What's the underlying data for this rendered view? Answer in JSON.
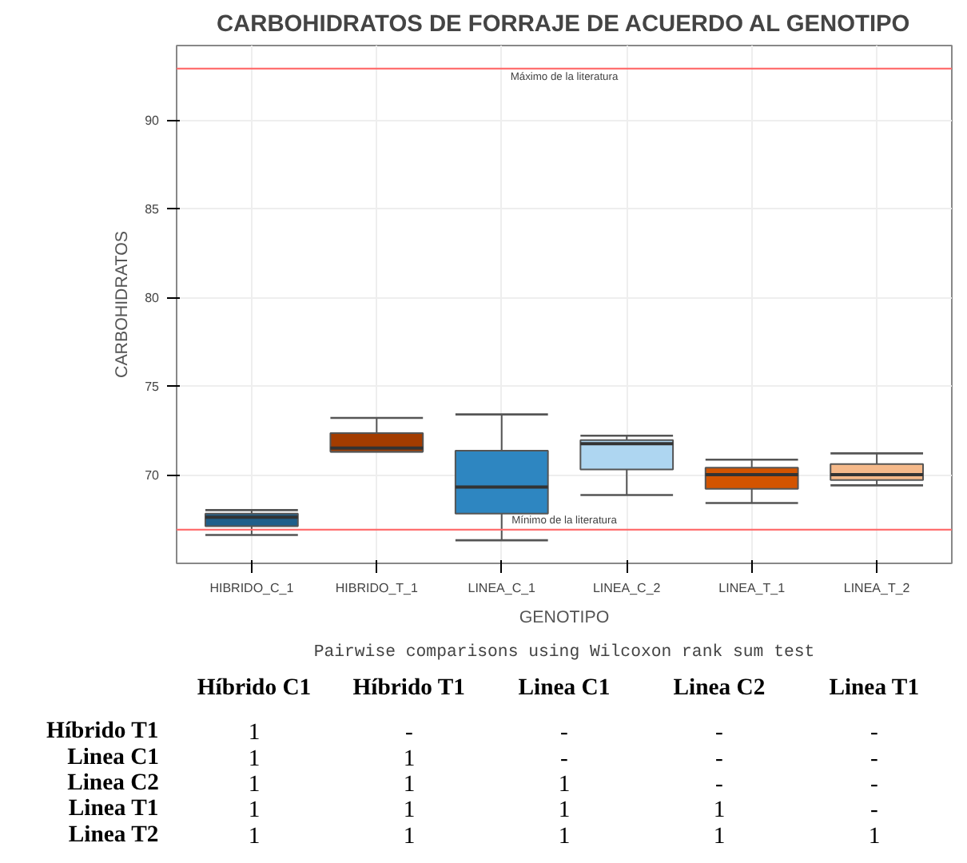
{
  "chart_data": [
    {
      "type": "box",
      "title": "CARBOHIDRATOS DE FORRAJE DE ACUERDO AL GENOTIPO",
      "xlabel": "GENOTIPO",
      "ylabel": "CARBOHIDRATOS",
      "categories": [
        "HIBRIDO_C_1",
        "HIBRIDO_T_1",
        "LINEA_C_1",
        "LINEA_C_2",
        "LINEA_T_1",
        "LINEA_T_2"
      ],
      "colors": [
        "#1f5f8b",
        "#a33c00",
        "#2e86c1",
        "#aed6f1",
        "#d35400",
        "#f5b98a"
      ],
      "boxes": [
        {
          "low": 66.6,
          "q1": 67.1,
          "median": 67.6,
          "q3": 67.8,
          "high": 68.0
        },
        {
          "low": 71.3,
          "q1": 71.3,
          "median": 71.5,
          "q3": 72.35,
          "high": 73.2
        },
        {
          "low": 66.3,
          "q1": 67.8,
          "median": 69.3,
          "q3": 71.35,
          "high": 73.4
        },
        {
          "low": 68.85,
          "q1": 70.3,
          "median": 71.75,
          "q3": 71.95,
          "high": 72.2
        },
        {
          "low": 68.4,
          "q1": 69.2,
          "median": 70.0,
          "q3": 70.4,
          "high": 70.85
        },
        {
          "low": 69.4,
          "q1": 69.7,
          "median": 70.0,
          "q3": 70.6,
          "high": 71.2
        }
      ],
      "ylim": [
        65.0,
        94.2
      ],
      "yticks": [
        70,
        75,
        80,
        85,
        90
      ],
      "grid": true,
      "ref_lines": [
        {
          "axis": "y",
          "value": 92.9,
          "label": "Máximo de la literatura",
          "color": "#ff6f6f"
        },
        {
          "axis": "y",
          "value": 66.9,
          "label": "Mínimo de la literatura",
          "color": "#ff6f6f"
        }
      ]
    },
    {
      "type": "heatmap",
      "title": "Pairwise comparisons using Wilcoxon rank sum test",
      "categories": [
        "Híbrido C1",
        "Híbrido T1",
        "Linea C1",
        "Linea C2",
        "Linea T1"
      ],
      "y_categories": [
        "Híbrido T1",
        "Linea C1",
        "Linea C2",
        "Linea T1",
        "Linea T2"
      ],
      "cells": [
        [
          1,
          null,
          null,
          null,
          null
        ],
        [
          1,
          1,
          null,
          null,
          null
        ],
        [
          1,
          1,
          1,
          null,
          null
        ],
        [
          1,
          1,
          1,
          1,
          null
        ],
        [
          1,
          1,
          1,
          1,
          1
        ]
      ],
      "cell_labels": [
        [
          "1",
          "-",
          "-",
          "-",
          "-"
        ],
        [
          "1",
          "1",
          "-",
          "-",
          "-"
        ],
        [
          "1",
          "1",
          "1",
          "-",
          "-"
        ],
        [
          "1",
          "1",
          "1",
          "1",
          "-"
        ],
        [
          "1",
          "1",
          "1",
          "1",
          "1"
        ]
      ]
    }
  ]
}
